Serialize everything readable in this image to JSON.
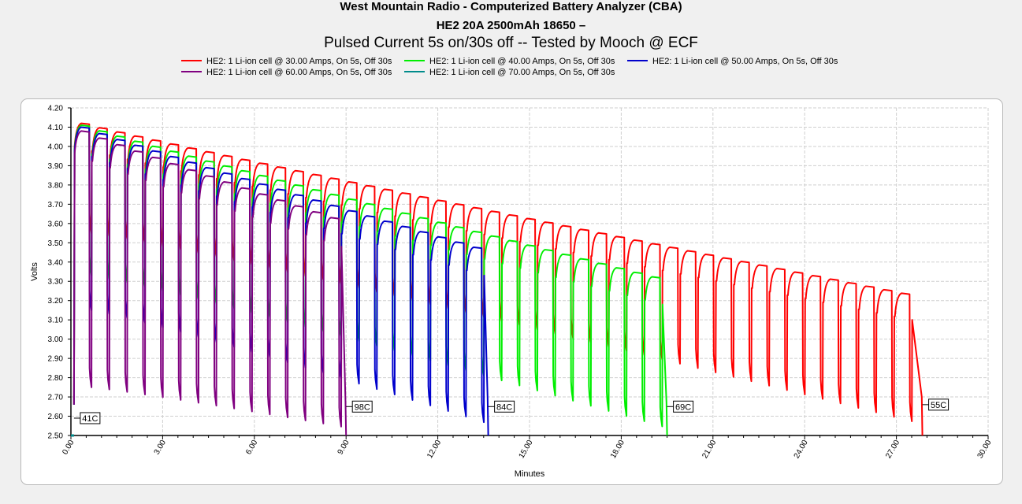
{
  "chart_data": {
    "type": "line",
    "title": "West Mountain Radio - Computerized Battery Analyzer (CBA)",
    "subtitle": "HE2 20A 2500mAh 18650 –",
    "subtitle2": "Pulsed Current 5s on/30s off -- Tested by Mooch @ ECF",
    "xlabel": "Minutes",
    "ylabel": "Volts",
    "xlim": [
      0,
      30
    ],
    "ylim": [
      2.5,
      4.2
    ],
    "x_ticks": [
      "0.00",
      "3.00",
      "6.00",
      "9.00",
      "12.00",
      "15.00",
      "18.00",
      "21.00",
      "24.00",
      "27.00",
      "30.00"
    ],
    "y_ticks": [
      "2.50",
      "2.60",
      "2.70",
      "2.80",
      "2.90",
      "3.00",
      "3.10",
      "3.20",
      "3.30",
      "3.40",
      "3.50",
      "3.60",
      "3.70",
      "3.80",
      "3.90",
      "4.00",
      "4.10",
      "4.20"
    ],
    "grid": true,
    "legend_position": "top",
    "pulse_period_min": 0.5833,
    "series": [
      {
        "name": "HE2: 1 Li-ion cell @ 30.00 Amps, On 5s, Off 30s",
        "color": "#ff0000",
        "end_min": 27.85,
        "rest_start": 4.12,
        "rest_end": 3.22,
        "load_start": 3.55,
        "load_end": 2.55,
        "end_temp": "55C"
      },
      {
        "name": "HE2: 1 Li-ion cell @ 40.00 Amps, On 5s, Off 30s",
        "color": "#00ee00",
        "end_min": 19.5,
        "rest_start": 4.11,
        "rest_end": 3.3,
        "load_start": 3.33,
        "load_end": 2.52,
        "end_temp": "69C"
      },
      {
        "name": "HE2: 1 Li-ion cell @ 50.00 Amps, On 5s, Off 30s",
        "color": "#0000cc",
        "end_min": 13.65,
        "rest_start": 4.1,
        "rest_end": 3.45,
        "load_start": 3.15,
        "load_end": 2.54,
        "end_temp": "84C"
      },
      {
        "name": "HE2: 1 Li-ion cell @ 60.00 Amps, On 5s, Off 30s",
        "color": "#800080",
        "end_min": 9.0,
        "rest_start": 4.08,
        "rest_end": 3.6,
        "load_start": 2.75,
        "load_end": 2.53,
        "end_temp": "98C"
      },
      {
        "name": "HE2: 1 Li-ion cell @ 70.00 Amps, On 5s, Off 30s",
        "color": "#008b8b",
        "end_min": 0.1,
        "rest_start": 2.5,
        "rest_end": 2.5,
        "load_start": 2.5,
        "load_end": 2.5,
        "end_temp": ""
      }
    ],
    "annotations": [
      {
        "text": "41C",
        "x": 0.1,
        "y": 2.59
      },
      {
        "text": "98C",
        "x": 9.0,
        "y": 2.65
      },
      {
        "text": "84C",
        "x": 13.65,
        "y": 2.65
      },
      {
        "text": "69C",
        "x": 19.5,
        "y": 2.65
      },
      {
        "text": "55C",
        "x": 27.85,
        "y": 2.66
      }
    ]
  }
}
